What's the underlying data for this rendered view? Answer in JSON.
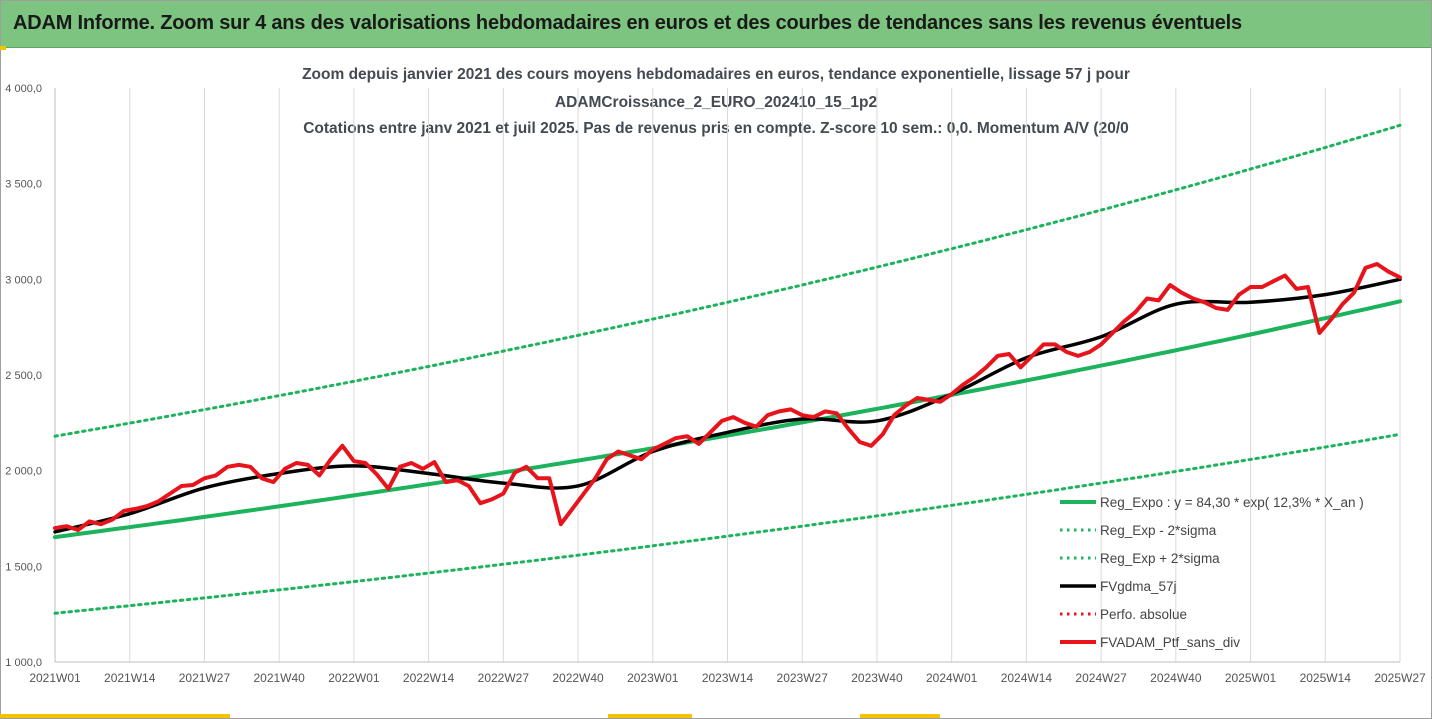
{
  "banner": {
    "title": "ADAM Informe. Zoom sur 4 ans des valorisations hebdomadaires en euros et des courbes de tendances sans les revenus éventuels"
  },
  "colors": {
    "banner": "#7cc47f",
    "trend": "#1db35c",
    "fvgdma": "#000000",
    "ptf": "#e8141b",
    "accent": "#f5c400"
  },
  "chart_data": {
    "type": "line",
    "title": [
      "Zoom depuis janvier 2021 des cours moyens hebdomadaires  en euros, tendance exponentielle, lissage 57 j pour",
      "ADAMCroissance_2_EURO_202410_15_1p2",
      "Cotations entre janv 2021 et juil 2025. Pas de revenus pris en compte. Z-score 10 sem.: 0,0. Momentum A/V (20/0"
    ],
    "x_ticks": [
      "2021W01",
      "2021W14",
      "2021W27",
      "2021W40",
      "2022W01",
      "2022W14",
      "2022W27",
      "2022W40",
      "2023W01",
      "2023W14",
      "2023W27",
      "2023W40",
      "2024W01",
      "2024W14",
      "2024W27",
      "2024W40",
      "2025W01",
      "2025W14",
      "2025W27"
    ],
    "y_ticks": [
      "1 000,0",
      "1 500,0",
      "2 000,0",
      "2 500,0",
      "3 000,0",
      "3 500,0",
      "4 000,0"
    ],
    "ylim": [
      1000,
      4000
    ],
    "x_range_weeks": [
      0,
      234
    ],
    "grid": "vertical",
    "legend_position": "bottom-right",
    "series": [
      {
        "name": "Reg_Expo : y = 84,30 * exp( 12,3% *  X_an )",
        "style": "solid-green",
        "x": [
          0,
          234
        ],
        "values": [
          1653,
          2885
        ]
      },
      {
        "name": "Reg_Exp - 2*sigma",
        "style": "dotted-green",
        "x": [
          0,
          234
        ],
        "values": [
          1255,
          2190
        ]
      },
      {
        "name": "Reg_Exp + 2*sigma",
        "style": "dotted-green",
        "x": [
          0,
          234
        ],
        "values": [
          2180,
          3805
        ]
      },
      {
        "name": "FVgdma_57j",
        "style": "solid-black",
        "x": [
          0,
          13,
          26,
          39,
          52,
          65,
          78,
          91,
          104,
          117,
          130,
          143,
          156,
          169,
          182,
          195,
          208,
          221,
          234
        ],
        "values": [
          1680,
          1775,
          1910,
          1985,
          2025,
          1985,
          1935,
          1920,
          2100,
          2200,
          2270,
          2260,
          2400,
          2590,
          2700,
          2870,
          2880,
          2920,
          3000
        ]
      },
      {
        "name": "Perfo. absolue",
        "style": "dotted-red",
        "x": [],
        "values": []
      },
      {
        "name": "FVADAM_Ptf_sans_div",
        "style": "solid-red",
        "x": [
          0,
          2,
          4,
          6,
          8,
          10,
          12,
          14,
          16,
          18,
          20,
          22,
          24,
          26,
          28,
          30,
          32,
          34,
          36,
          38,
          40,
          42,
          44,
          46,
          48,
          50,
          52,
          54,
          56,
          58,
          60,
          62,
          64,
          66,
          68,
          70,
          72,
          74,
          76,
          78,
          80,
          82,
          84,
          86,
          88,
          90,
          92,
          94,
          96,
          98,
          100,
          102,
          104,
          106,
          108,
          110,
          112,
          114,
          116,
          118,
          120,
          122,
          124,
          126,
          128,
          130,
          132,
          134,
          136,
          138,
          140,
          142,
          144,
          146,
          148,
          150,
          152,
          154,
          156,
          158,
          160,
          162,
          164,
          166,
          168,
          170,
          172,
          174,
          176,
          178,
          180,
          182,
          184,
          186,
          188,
          190,
          192,
          194,
          196,
          198,
          200,
          202,
          204,
          206,
          208,
          210,
          212,
          214,
          216,
          218,
          220,
          222,
          224,
          226,
          228,
          230,
          232,
          234
        ],
        "values": [
          1700,
          1710,
          1690,
          1735,
          1720,
          1745,
          1790,
          1800,
          1815,
          1840,
          1880,
          1920,
          1925,
          1960,
          1975,
          2020,
          2030,
          2020,
          1960,
          1940,
          2010,
          2040,
          2030,
          1975,
          2060,
          2130,
          2050,
          2040,
          1980,
          1905,
          2020,
          2040,
          2010,
          2045,
          1940,
          1950,
          1920,
          1830,
          1850,
          1880,
          1990,
          2020,
          1960,
          1960,
          1720,
          1800,
          1880,
          1960,
          2060,
          2100,
          2080,
          2060,
          2110,
          2140,
          2170,
          2180,
          2140,
          2200,
          2260,
          2280,
          2250,
          2230,
          2290,
          2310,
          2320,
          2290,
          2280,
          2310,
          2300,
          2220,
          2150,
          2130,
          2190,
          2290,
          2340,
          2380,
          2370,
          2360,
          2400,
          2450,
          2490,
          2540,
          2600,
          2610,
          2540,
          2600,
          2660,
          2660,
          2620,
          2600,
          2620,
          2660,
          2720,
          2780,
          2830,
          2900,
          2890,
          2970,
          2930,
          2900,
          2880,
          2850,
          2840,
          2920,
          2960,
          2960,
          2990,
          3020,
          2950,
          2960,
          2720,
          2790,
          2870,
          2930,
          3060,
          3080,
          3040,
          3010
        ]
      }
    ]
  }
}
